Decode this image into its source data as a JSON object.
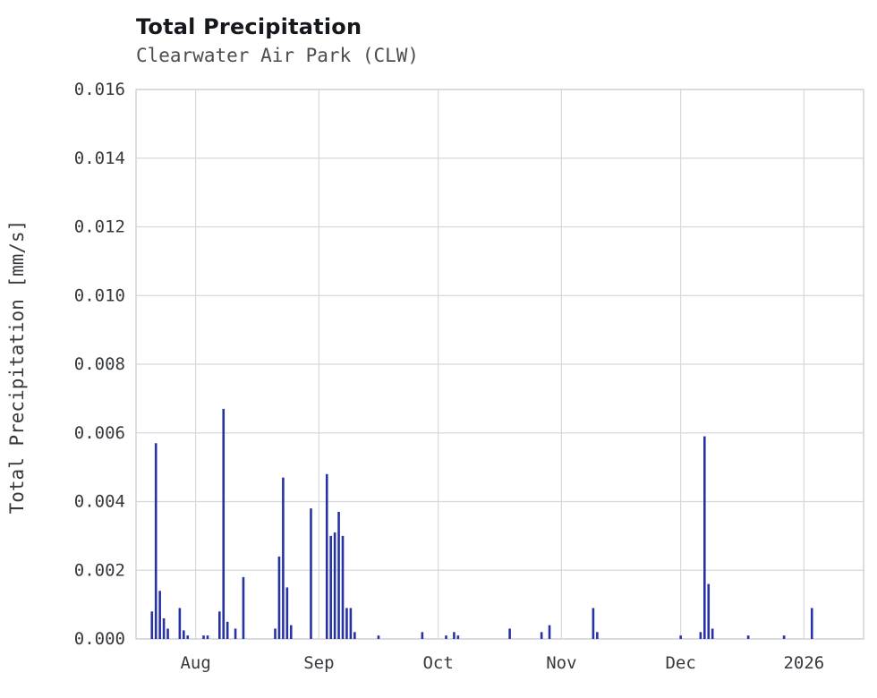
{
  "header": {
    "title": "Total Precipitation",
    "subtitle": "Clearwater Air Park (CLW)"
  },
  "chart_data": {
    "type": "bar",
    "title": "Total Precipitation",
    "subtitle": "Clearwater Air Park (CLW)",
    "xlabel": "",
    "ylabel": "Total Precipitation [mm/s]",
    "ylim": [
      0,
      0.016
    ],
    "y_ticks": [
      0.0,
      0.002,
      0.004,
      0.006,
      0.008,
      0.01,
      0.012,
      0.014,
      0.016
    ],
    "y_tick_decimals": 3,
    "x_domain": [
      "2025-07-17",
      "2026-01-16"
    ],
    "x_ticks": [
      {
        "date": "2025-08-01",
        "label": "Aug"
      },
      {
        "date": "2025-09-01",
        "label": "Sep"
      },
      {
        "date": "2025-10-01",
        "label": "Oct"
      },
      {
        "date": "2025-11-01",
        "label": "Nov"
      },
      {
        "date": "2025-12-01",
        "label": "Dec"
      },
      {
        "date": "2026-01-01",
        "label": "2026"
      }
    ],
    "grid": true,
    "legend": "none",
    "bar_color": "#2733a5",
    "grid_color": "#d7d8de",
    "border_color": "#cfd0d6",
    "points": [
      {
        "date": "2025-07-21",
        "value": 0.0008
      },
      {
        "date": "2025-07-22",
        "value": 0.0057
      },
      {
        "date": "2025-07-23",
        "value": 0.0014
      },
      {
        "date": "2025-07-24",
        "value": 0.0006
      },
      {
        "date": "2025-07-25",
        "value": 0.0003
      },
      {
        "date": "2025-07-28",
        "value": 0.0009
      },
      {
        "date": "2025-07-29",
        "value": 0.00025
      },
      {
        "date": "2025-07-30",
        "value": 0.0001
      },
      {
        "date": "2025-08-03",
        "value": 0.0001
      },
      {
        "date": "2025-08-04",
        "value": 0.0001
      },
      {
        "date": "2025-08-07",
        "value": 0.0008
      },
      {
        "date": "2025-08-08",
        "value": 0.0067
      },
      {
        "date": "2025-08-09",
        "value": 0.0005
      },
      {
        "date": "2025-08-11",
        "value": 0.0003
      },
      {
        "date": "2025-08-13",
        "value": 0.0018
      },
      {
        "date": "2025-08-21",
        "value": 0.0003
      },
      {
        "date": "2025-08-22",
        "value": 0.0024
      },
      {
        "date": "2025-08-23",
        "value": 0.0047
      },
      {
        "date": "2025-08-24",
        "value": 0.0015
      },
      {
        "date": "2025-08-25",
        "value": 0.0004
      },
      {
        "date": "2025-08-30",
        "value": 0.0038
      },
      {
        "date": "2025-09-03",
        "value": 0.0048
      },
      {
        "date": "2025-09-04",
        "value": 0.003
      },
      {
        "date": "2025-09-05",
        "value": 0.0031
      },
      {
        "date": "2025-09-06",
        "value": 0.0037
      },
      {
        "date": "2025-09-07",
        "value": 0.003
      },
      {
        "date": "2025-09-08",
        "value": 0.0009
      },
      {
        "date": "2025-09-09",
        "value": 0.0009
      },
      {
        "date": "2025-09-10",
        "value": 0.0002
      },
      {
        "date": "2025-09-16",
        "value": 0.0001
      },
      {
        "date": "2025-09-27",
        "value": 0.0002
      },
      {
        "date": "2025-10-03",
        "value": 0.0001
      },
      {
        "date": "2025-10-05",
        "value": 0.0002
      },
      {
        "date": "2025-10-06",
        "value": 0.0001
      },
      {
        "date": "2025-10-19",
        "value": 0.0003
      },
      {
        "date": "2025-10-27",
        "value": 0.0002
      },
      {
        "date": "2025-10-29",
        "value": 0.0004
      },
      {
        "date": "2025-11-09",
        "value": 0.0009
      },
      {
        "date": "2025-11-10",
        "value": 0.0002
      },
      {
        "date": "2025-12-01",
        "value": 0.0001
      },
      {
        "date": "2025-12-06",
        "value": 0.0002
      },
      {
        "date": "2025-12-07",
        "value": 0.0059
      },
      {
        "date": "2025-12-08",
        "value": 0.0016
      },
      {
        "date": "2025-12-09",
        "value": 0.0003
      },
      {
        "date": "2025-12-18",
        "value": 0.0001
      },
      {
        "date": "2025-12-27",
        "value": 0.0001
      },
      {
        "date": "2026-01-03",
        "value": 0.0009
      }
    ]
  },
  "layout_text": {
    "note": ""
  }
}
